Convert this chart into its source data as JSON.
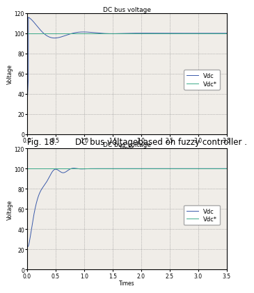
{
  "title1": "DC bus voltage",
  "title2": "DC bus voltage",
  "xlabel": "Times",
  "ylabel": "Voltage",
  "xlim": [
    0,
    3.5
  ],
  "ylim": [
    0,
    120
  ],
  "yticks": [
    0,
    20,
    40,
    60,
    80,
    100,
    120
  ],
  "xticks": [
    0,
    0.5,
    1,
    1.5,
    2,
    2.5,
    3,
    3.5
  ],
  "vdc_ref": 100,
  "caption": "Fig. 18.       DC bus voltagebased on fuzzy controller .",
  "legend_labels": [
    "Vdc",
    "Vdc*"
  ],
  "vdc_color": "#3a5aaa",
  "vdcref_color": "#3aaa88",
  "bg_color": "#f0ede8",
  "title_fontsize": 6.5,
  "label_fontsize": 5.5,
  "tick_fontsize": 5.5,
  "legend_fontsize": 6,
  "caption_fontsize": 8.5
}
